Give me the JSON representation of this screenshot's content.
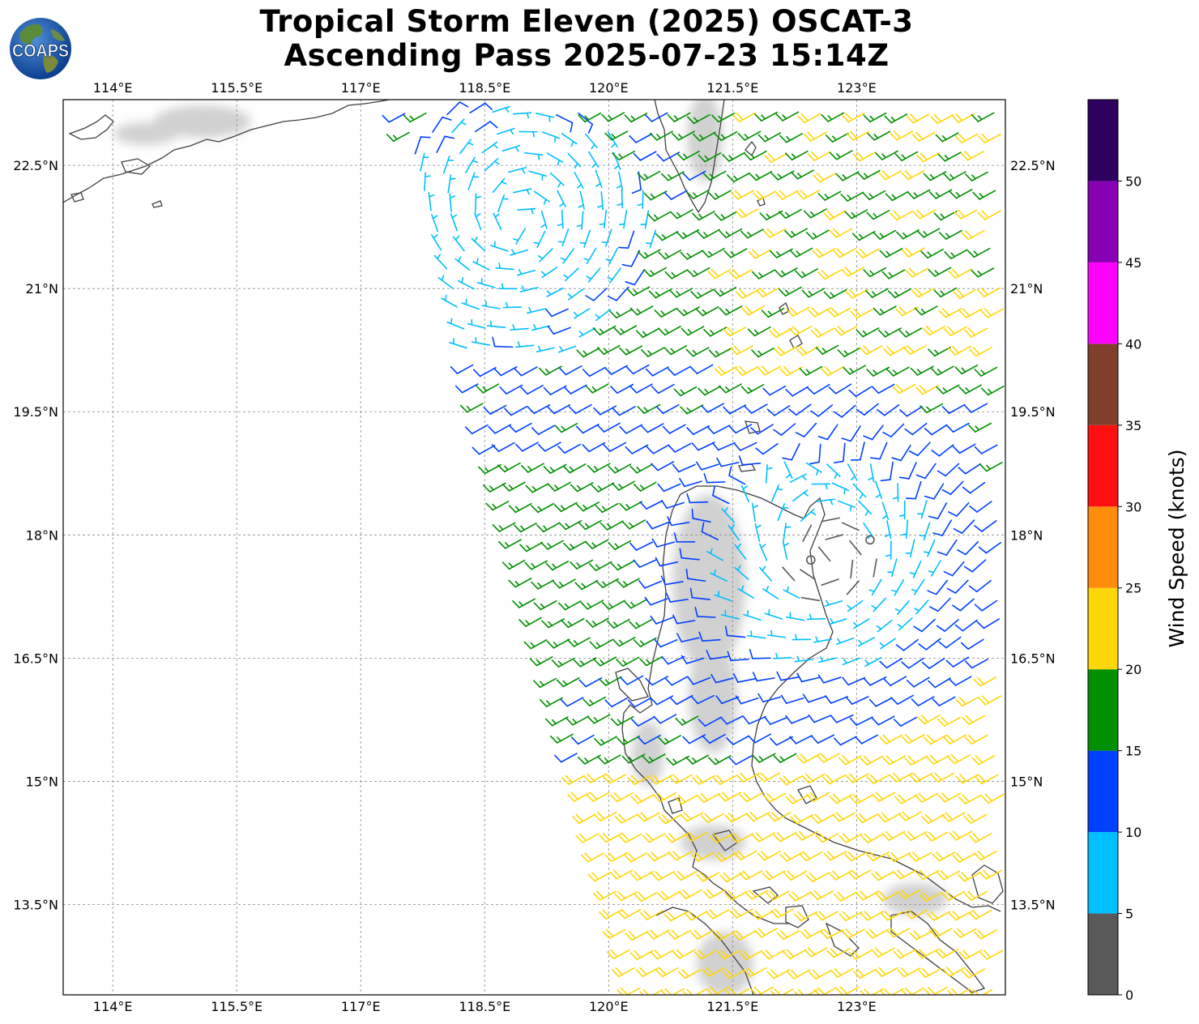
{
  "title_line1": "Tropical Storm Eleven (2025) OSCAT-3",
  "title_line2": "Ascending Pass 2025-07-23 15:14Z",
  "logo_text": "COAPS",
  "map": {
    "lon_range": [
      113.4,
      124.8
    ],
    "lat_range": [
      12.4,
      23.3
    ],
    "lon_ticks": [
      114,
      115.5,
      117,
      118.5,
      120,
      121.5,
      123
    ],
    "lon_tick_labels": [
      "114°E",
      "115.5°E",
      "117°E",
      "118.5°E",
      "120°E",
      "121.5°E",
      "123°E"
    ],
    "lat_ticks": [
      13.5,
      15,
      16.5,
      18,
      19.5,
      21,
      22.5
    ],
    "lat_tick_labels": [
      "13.5°N",
      "15°N",
      "16.5°N",
      "18°N",
      "19.5°N",
      "21°N",
      "22.5°N"
    ],
    "gridlines": true
  },
  "colorbar": {
    "label": "Wind Speed (knots)",
    "ticks": [
      0,
      5,
      10,
      15,
      20,
      25,
      30,
      35,
      40,
      45,
      50
    ],
    "tick_labels": [
      "0",
      "5",
      "10",
      "15",
      "20",
      "25",
      "30",
      "35",
      "40",
      "45",
      "50"
    ],
    "bins": [
      {
        "from": 0,
        "to": 5,
        "color": "#595959"
      },
      {
        "from": 5,
        "to": 10,
        "color": "#00bfff"
      },
      {
        "from": 10,
        "to": 15,
        "color": "#0040ff"
      },
      {
        "from": 15,
        "to": 20,
        "color": "#008f00"
      },
      {
        "from": 20,
        "to": 25,
        "color": "#ffd60a"
      },
      {
        "from": 25,
        "to": 30,
        "color": "#ff8c0a"
      },
      {
        "from": 30,
        "to": 35,
        "color": "#ff1010"
      },
      {
        "from": 35,
        "to": 40,
        "color": "#7f3f2a"
      },
      {
        "from": 40,
        "to": 45,
        "color": "#ff00ff"
      },
      {
        "from": 45,
        "to": 50,
        "color": "#8800b4"
      },
      {
        "from": 50,
        "to": 55,
        "color": "#2e0060"
      }
    ]
  },
  "storm_center": {
    "lon": 122.7,
    "lat": 17.7
  }
}
